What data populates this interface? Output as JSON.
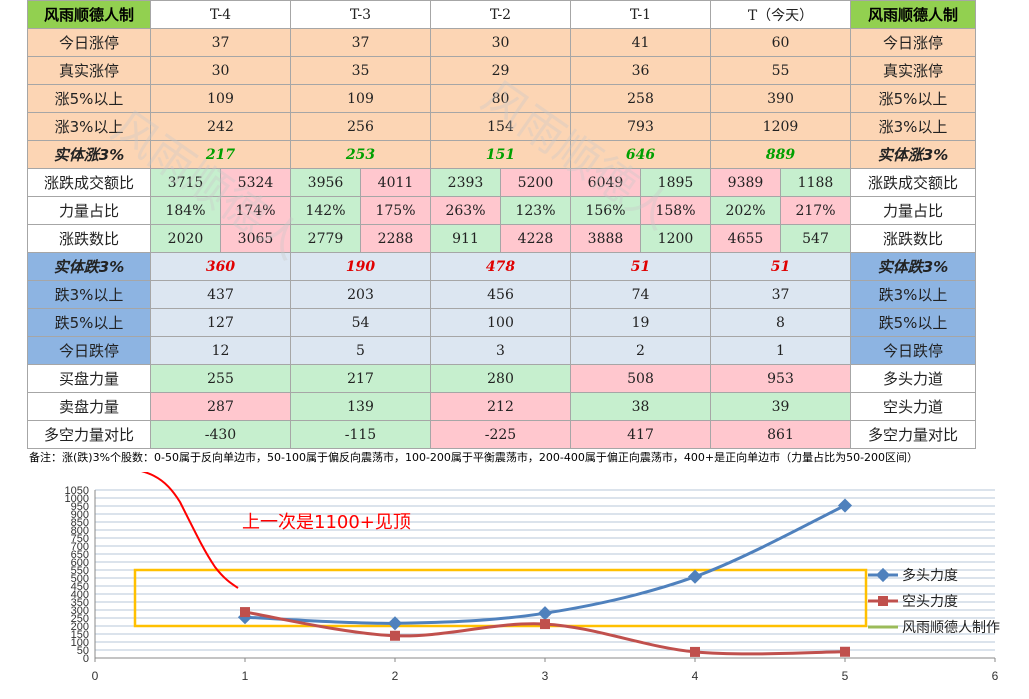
{
  "table": {
    "header": [
      "风雨顺德人制",
      "T-4",
      "T-3",
      "T-2",
      "T-1",
      "T（今天）",
      "风雨顺德人制"
    ],
    "rows": [
      {
        "label": "今日涨停",
        "right": "今日涨停",
        "cells": [
          "37",
          "37",
          "30",
          "41",
          "60"
        ]
      },
      {
        "label": "真实涨停",
        "right": "真实涨停",
        "cells": [
          "30",
          "35",
          "29",
          "36",
          "55"
        ]
      },
      {
        "label": "涨5%以上",
        "right": "涨5%以上",
        "cells": [
          "109",
          "109",
          "80",
          "258",
          "390"
        ]
      },
      {
        "label": "涨3%以上",
        "right": "涨3%以上",
        "cells": [
          "242",
          "256",
          "154",
          "793",
          "1209"
        ]
      },
      {
        "label": "实体涨3%",
        "right": "实体涨3%",
        "cells": [
          "217",
          "253",
          "151",
          "646",
          "889"
        ]
      },
      {
        "label": "涨跌成交额比",
        "right": "涨跌成交额比",
        "cells": [
          "3715",
          "5324",
          "3956",
          "4011",
          "2393",
          "5200",
          "6049",
          "1895",
          "9389",
          "1188"
        ]
      },
      {
        "label": "力量占比",
        "right": "力量占比",
        "cells": [
          "184%",
          "174%",
          "142%",
          "175%",
          "263%",
          "123%",
          "156%",
          "158%",
          "202%",
          "217%"
        ]
      },
      {
        "label": "涨跌数比",
        "right": "涨跌数比",
        "cells": [
          "2020",
          "3065",
          "2779",
          "2288",
          "911",
          "4228",
          "3888",
          "1200",
          "4655",
          "547"
        ]
      },
      {
        "label": "实体跌3%",
        "right": "实体跌3%",
        "cells": [
          "360",
          "190",
          "478",
          "51",
          "51"
        ]
      },
      {
        "label": "跌3%以上",
        "right": "跌3%以上",
        "cells": [
          "437",
          "203",
          "456",
          "74",
          "37"
        ]
      },
      {
        "label": "跌5%以上",
        "right": "跌5%以上",
        "cells": [
          "127",
          "54",
          "100",
          "19",
          "8"
        ]
      },
      {
        "label": "今日跌停",
        "right": "今日跌停",
        "cells": [
          "12",
          "5",
          "3",
          "2",
          "1"
        ]
      },
      {
        "label": "买盘力量",
        "right": "多头力道",
        "cells": [
          "255",
          "217",
          "280",
          "508",
          "953"
        ]
      },
      {
        "label": "卖盘力量",
        "right": "空头力道",
        "cells": [
          "287",
          "139",
          "212",
          "38",
          "39"
        ]
      },
      {
        "label": "多空力量对比",
        "right": "多空力量对比",
        "cells": [
          "-430",
          "-115",
          "-225",
          "417",
          "861"
        ]
      }
    ],
    "note": "备注：涨(跌)3%个股数：0-50属于反向单边市，50-100属于偏反向震荡市，100-200属于平衡震荡市，200-400属于偏正向震荡市，400+是正向单边市（力量占比为50-200区间）"
  },
  "annotation": "上一次是1100+见顶",
  "watermarks": [
    "风雨顺德人",
    "风雨顺德人"
  ],
  "colors": {
    "bull": "#4f81bd",
    "bear": "#c0504d",
    "maker": "#9bbb59",
    "box": "#ffc000",
    "annotation": "#ff0000"
  },
  "chart_data": {
    "type": "line",
    "x": [
      1,
      2,
      3,
      4,
      5
    ],
    "series": [
      {
        "name": "多头力度",
        "values": [
          255,
          217,
          280,
          508,
          953
        ]
      },
      {
        "name": "空头力度",
        "values": [
          287,
          139,
          212,
          38,
          39
        ]
      }
    ],
    "legend_extra": "风雨顺德人制作",
    "xlim": [
      0,
      6
    ],
    "ylim": [
      0,
      1050
    ],
    "x_ticks": [
      "0",
      "1",
      "2",
      "3",
      "4",
      "5",
      "6"
    ],
    "y_ticks": [
      "0",
      "50",
      "100",
      "150",
      "200",
      "250",
      "300",
      "350",
      "400",
      "450",
      "500",
      "550",
      "600",
      "650",
      "700",
      "750",
      "800",
      "850",
      "900",
      "950",
      "1000",
      "1050"
    ],
    "highlight_range": [
      200,
      550
    ],
    "grid": true,
    "legend_position": "right"
  }
}
